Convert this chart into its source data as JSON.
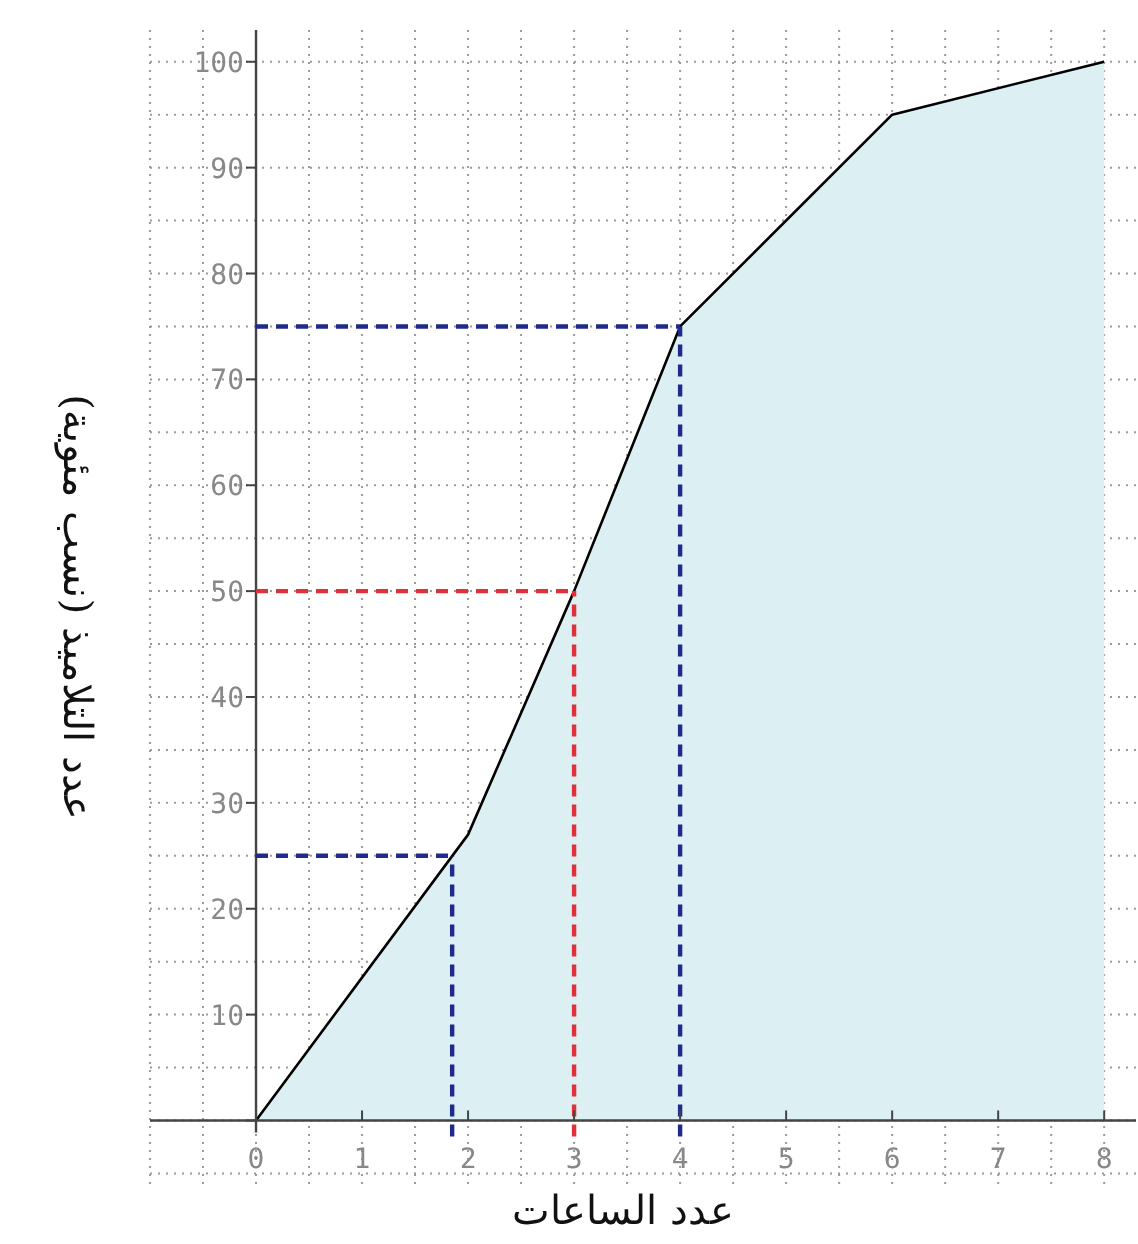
{
  "chart_data": {
    "type": "area",
    "xlabel": "عدد الساعات",
    "ylabel": "عدد التلاميذ (نسب مئوية)",
    "x": [
      0,
      2,
      3,
      4,
      6,
      8
    ],
    "series": [
      {
        "color": "#000000",
        "values": [
          0,
          27,
          50,
          75,
          95,
          100
        ]
      }
    ],
    "xlim": [
      -1,
      8.3
    ],
    "ylim": [
      -6,
      103
    ],
    "xticks": [
      0,
      1,
      2,
      3,
      4,
      5,
      6,
      7,
      8
    ],
    "yticks": [
      {
        "value": 0,
        "label": null
      },
      10,
      20,
      30,
      40,
      50,
      60,
      70,
      80,
      90,
      100
    ],
    "grid": true,
    "line_style": "solid",
    "marker": "none",
    "ref_lines": [
      {
        "axis": "y",
        "value": 25,
        "color": "#1f2a8a",
        "line_style": "dashed"
      },
      {
        "axis": "x",
        "value": 1.85,
        "color": "#1f2a8a",
        "line_style": "dashed"
      },
      {
        "axis": "y",
        "value": 50,
        "color": "#e0303a",
        "line_style": "dashed"
      },
      {
        "axis": "x",
        "value": 3,
        "color": "#e0303a",
        "line_style": "dashed"
      },
      {
        "axis": "y",
        "value": 75,
        "color": "#1f2a8a",
        "line_style": "dashed"
      },
      {
        "axis": "x",
        "value": 4,
        "color": "#1f2a8a",
        "line_style": "dashed"
      }
    ]
  }
}
